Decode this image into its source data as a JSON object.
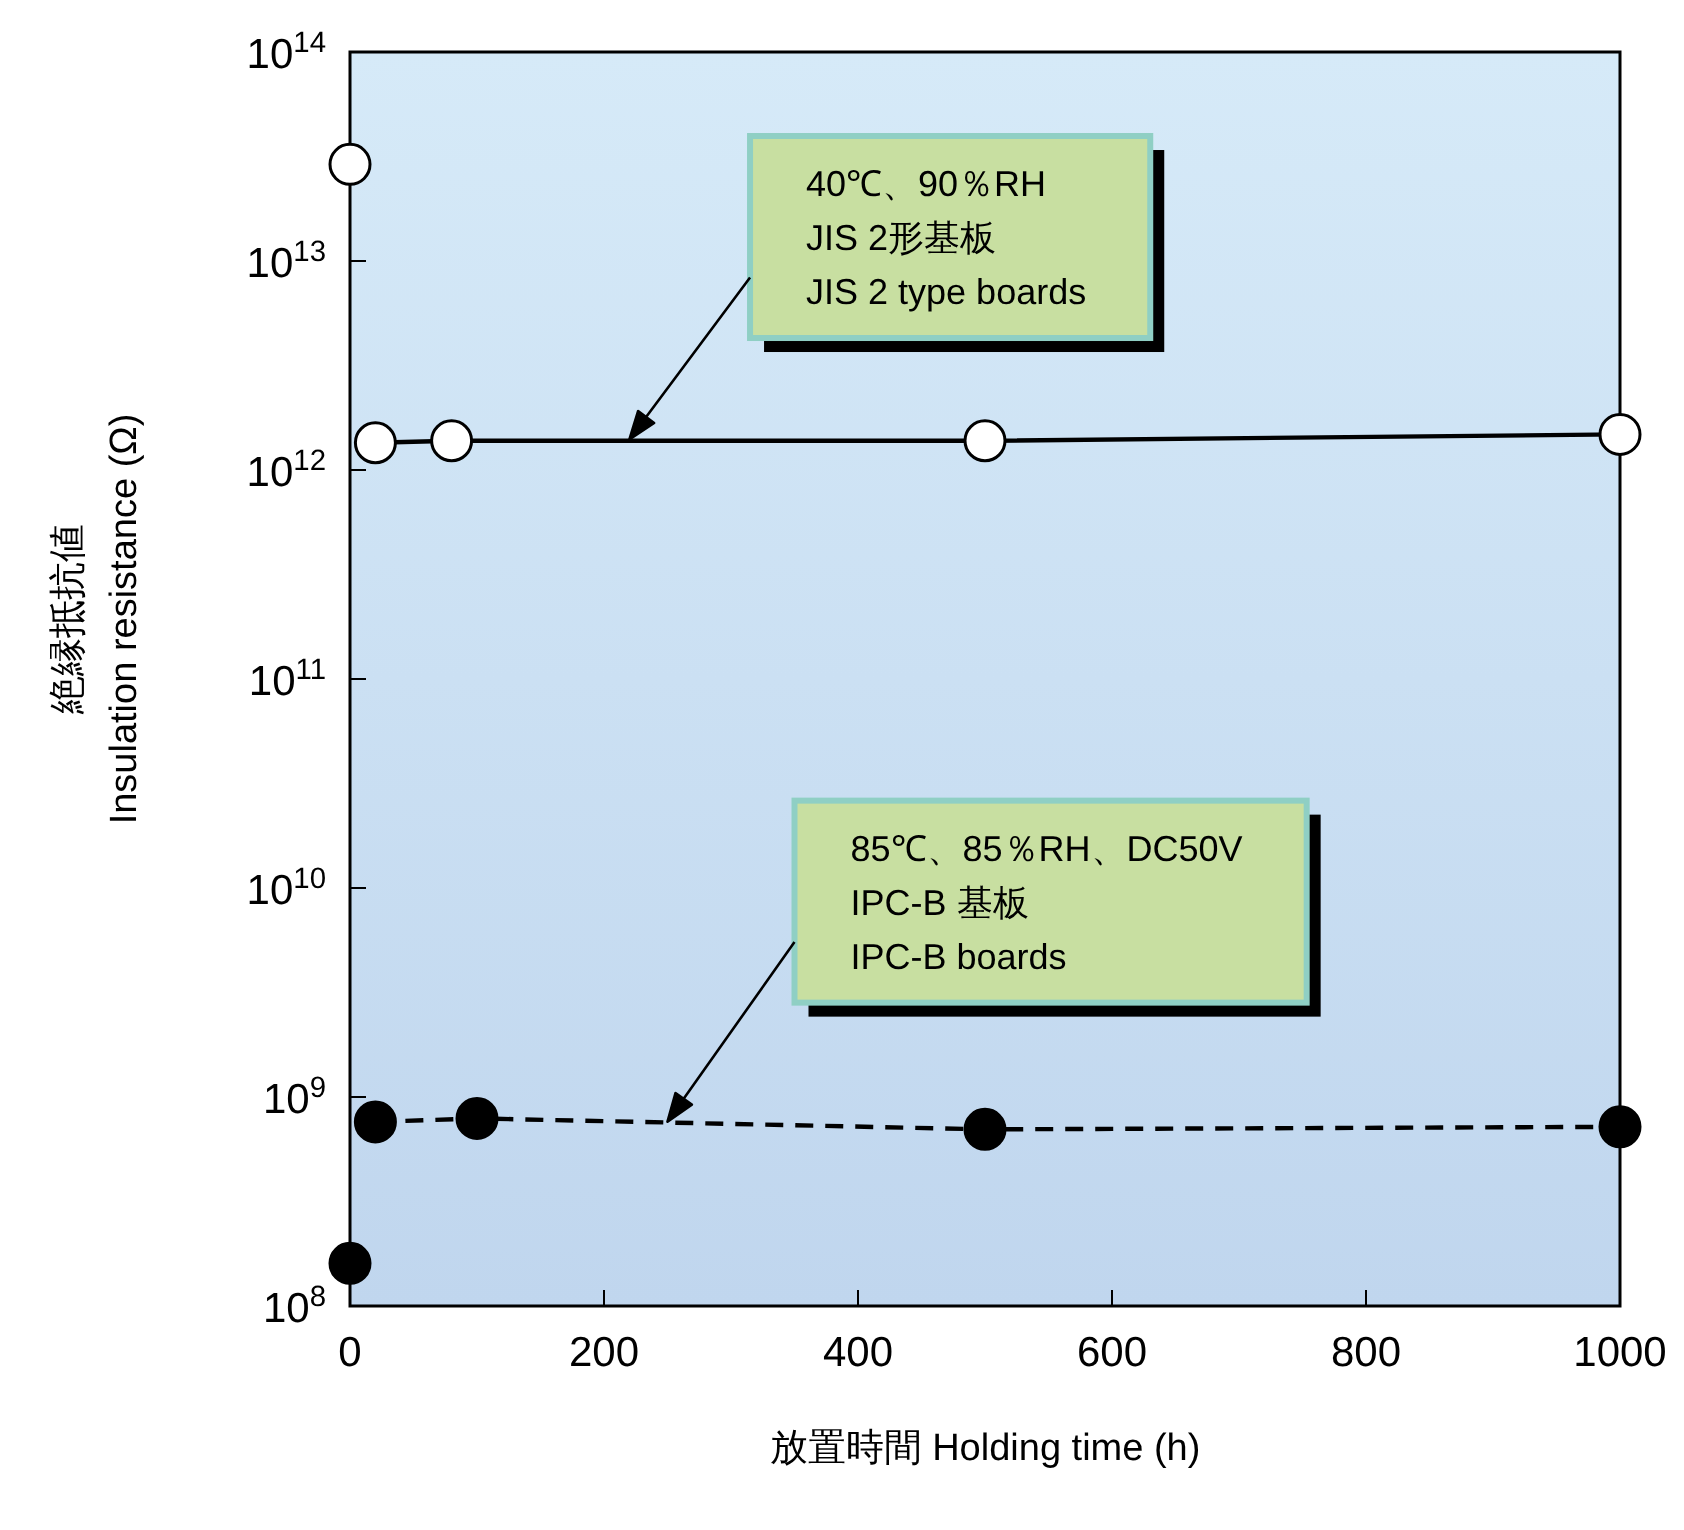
{
  "chart_data": {
    "type": "line",
    "xlabel": "放置時間  Holding time (h)",
    "ylabel": "絶縁抵抗値\nInsulation resistance (Ω)",
    "log": "y",
    "xlim": [
      0,
      1000
    ],
    "ylim": [
      100000000.0,
      100000000000000.0
    ],
    "xticks": [
      0,
      200,
      400,
      600,
      800,
      1000
    ],
    "yticks": [
      {
        "value": 100000000.0,
        "label": "10$^{8}$"
      },
      {
        "value": 1000000000.0,
        "label": "10$^{9}$"
      },
      {
        "value": 10000000000.0,
        "label": "10$^{10}$"
      },
      {
        "value": 100000000000.0,
        "label": "10$^{11}$"
      },
      {
        "value": 1000000000000.0,
        "label": "10$^{12}$"
      },
      {
        "value": 10000000000000.0,
        "label": "10$^{13}$"
      },
      {
        "value": 100000000000000.0,
        "label": "10$^{14}$"
      }
    ],
    "grid": false,
    "marker": "circle",
    "series": [
      {
        "type": "scatter",
        "color": "#ffffff",
        "x": [
          0
        ],
        "values": [
          29000000000000.0
        ]
      },
      {
        "color": "#ffffff",
        "line_style": "solid",
        "x": [
          20,
          80,
          500,
          1000
        ],
        "values": [
          1350000000000.0,
          1380000000000.0,
          1380000000000.0,
          1480000000000.0
        ]
      },
      {
        "type": "scatter",
        "color": "#000000",
        "x": [
          0
        ],
        "values": [
          160000000.0
        ]
      },
      {
        "color": "#000000",
        "line_style": "dashed",
        "x": [
          20,
          100,
          500,
          1000
        ],
        "values": [
          760000000.0,
          790000000.0,
          700000000.0,
          720000000.0
        ]
      }
    ],
    "annotations": [
      "40℃、90％RH\nJIS 2形基板\nJIS 2 type boards",
      "85℃、85％RH、DC50V\nIPC-B 基板\nIPC-B boards"
    ]
  }
}
